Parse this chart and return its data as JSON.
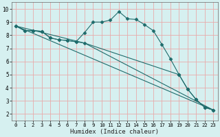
{
  "xlabel": "Humidex (Indice chaleur)",
  "background_color": "#d6f0f0",
  "grid_color": "#e8aaaa",
  "line_color": "#1e6b6b",
  "xlim": [
    -0.5,
    23.5
  ],
  "ylim": [
    1.5,
    10.5
  ],
  "xticks": [
    0,
    1,
    2,
    3,
    4,
    5,
    6,
    7,
    8,
    9,
    10,
    11,
    12,
    13,
    14,
    15,
    16,
    17,
    18,
    19,
    20,
    21,
    22,
    23
  ],
  "yticks": [
    2,
    3,
    4,
    5,
    6,
    7,
    8,
    9,
    10
  ],
  "lines": [
    {
      "x": [
        0,
        1,
        2,
        3,
        4,
        5,
        6,
        7,
        8,
        9,
        10,
        11,
        12,
        13,
        14,
        15,
        16,
        17,
        18,
        19,
        20,
        21,
        22,
        23
      ],
      "y": [
        8.7,
        8.35,
        8.35,
        8.3,
        7.8,
        7.65,
        7.6,
        7.5,
        8.2,
        9.0,
        9.0,
        9.15,
        9.8,
        9.25,
        9.2,
        8.8,
        8.35,
        7.3,
        6.2,
        5.0,
        3.9,
        3.1,
        2.5,
        2.3
      ],
      "marker": "D",
      "markersize": 2.5
    },
    {
      "x": [
        0,
        1,
        2,
        3,
        4,
        5,
        6,
        7,
        8,
        19,
        20,
        21,
        22,
        23
      ],
      "y": [
        8.7,
        8.35,
        8.35,
        8.3,
        7.8,
        7.65,
        7.6,
        7.5,
        7.4,
        5.0,
        3.9,
        3.1,
        2.5,
        2.3
      ],
      "marker": "D",
      "markersize": 2.5
    },
    {
      "x": [
        0,
        23
      ],
      "y": [
        8.7,
        2.3
      ],
      "marker": null,
      "markersize": 0
    },
    {
      "x": [
        0,
        8,
        23
      ],
      "y": [
        8.7,
        7.4,
        2.3
      ],
      "marker": null,
      "markersize": 0
    }
  ]
}
